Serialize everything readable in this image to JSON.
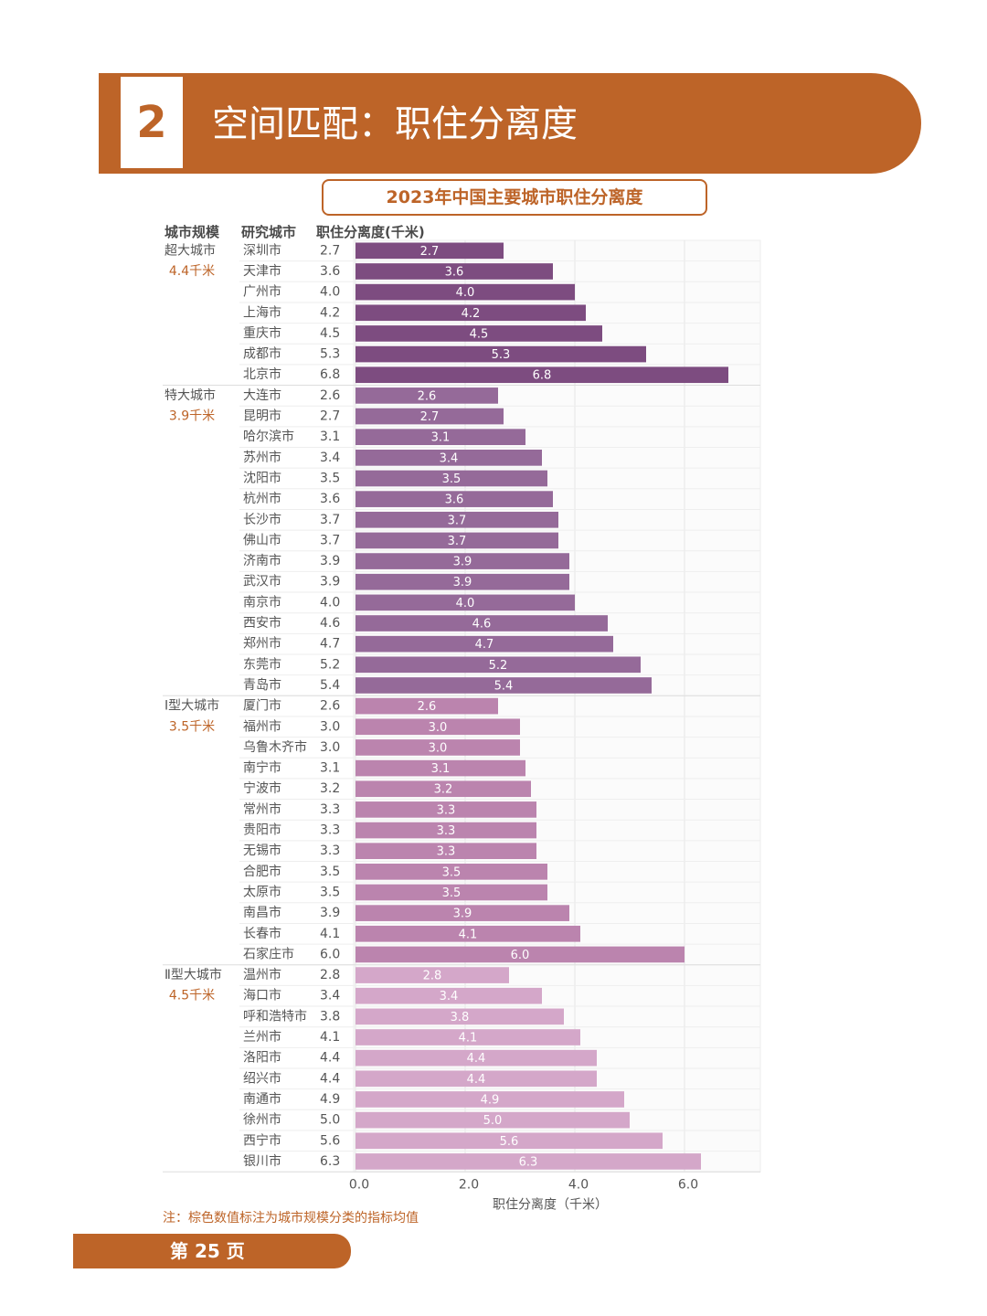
{
  "header": {
    "section_number": "2",
    "title": "空间匹配：职住分离度"
  },
  "columns": {
    "tier": "城市规模",
    "city": "研究城市",
    "value": "职住分离度(千米)"
  },
  "note": "注：棕色数值标注为城市规模分类的指标均值",
  "footer": {
    "page_label": "第 25 页"
  },
  "colors": {
    "accent": "#bd6428",
    "tier_super": "#7d4c80",
    "tier_mega": "#956a99",
    "tier_large1": "#bb84ae",
    "tier_large2": "#d4a7c9"
  },
  "chart_data": {
    "type": "bar",
    "orientation": "horizontal",
    "title": "2023年中国主要城市职住分离度",
    "xlabel": "职住分离度（千米）",
    "xlim": [
      0,
      7
    ],
    "xticks": [
      "0.0",
      "2.0",
      "4.0",
      "6.0"
    ],
    "xtick_values": [
      0,
      2,
      4,
      6
    ],
    "grid": true,
    "groups": [
      {
        "name": "超大城市",
        "avg_label": "4.4千米",
        "color": "#7d4c80",
        "cities": [
          "深圳市",
          "天津市",
          "广州市",
          "上海市",
          "重庆市",
          "成都市",
          "北京市"
        ],
        "values": [
          2.7,
          3.6,
          4.0,
          4.2,
          4.5,
          5.3,
          6.8
        ]
      },
      {
        "name": "特大城市",
        "avg_label": "3.9千米",
        "color": "#956a99",
        "cities": [
          "大连市",
          "昆明市",
          "哈尔滨市",
          "苏州市",
          "沈阳市",
          "杭州市",
          "长沙市",
          "佛山市",
          "济南市",
          "武汉市",
          "南京市",
          "西安市",
          "郑州市",
          "东莞市",
          "青岛市"
        ],
        "values": [
          2.6,
          2.7,
          3.1,
          3.4,
          3.5,
          3.6,
          3.7,
          3.7,
          3.9,
          3.9,
          4.0,
          4.6,
          4.7,
          5.2,
          5.4
        ]
      },
      {
        "name": "Ⅰ型大城市",
        "avg_label": "3.5千米",
        "color": "#bb84ae",
        "cities": [
          "厦门市",
          "福州市",
          "乌鲁木齐市",
          "南宁市",
          "宁波市",
          "常州市",
          "贵阳市",
          "无锡市",
          "合肥市",
          "太原市",
          "南昌市",
          "长春市",
          "石家庄市"
        ],
        "values": [
          2.6,
          3.0,
          3.0,
          3.1,
          3.2,
          3.3,
          3.3,
          3.3,
          3.5,
          3.5,
          3.9,
          4.1,
          6.0
        ]
      },
      {
        "name": "Ⅱ型大城市",
        "avg_label": "4.5千米",
        "color": "#d4a7c9",
        "cities": [
          "温州市",
          "海口市",
          "呼和浩特市",
          "兰州市",
          "洛阳市",
          "绍兴市",
          "南通市",
          "徐州市",
          "西宁市",
          "银川市"
        ],
        "values": [
          2.8,
          3.4,
          3.8,
          4.1,
          4.4,
          4.4,
          4.9,
          5.0,
          5.6,
          6.3
        ]
      }
    ]
  }
}
